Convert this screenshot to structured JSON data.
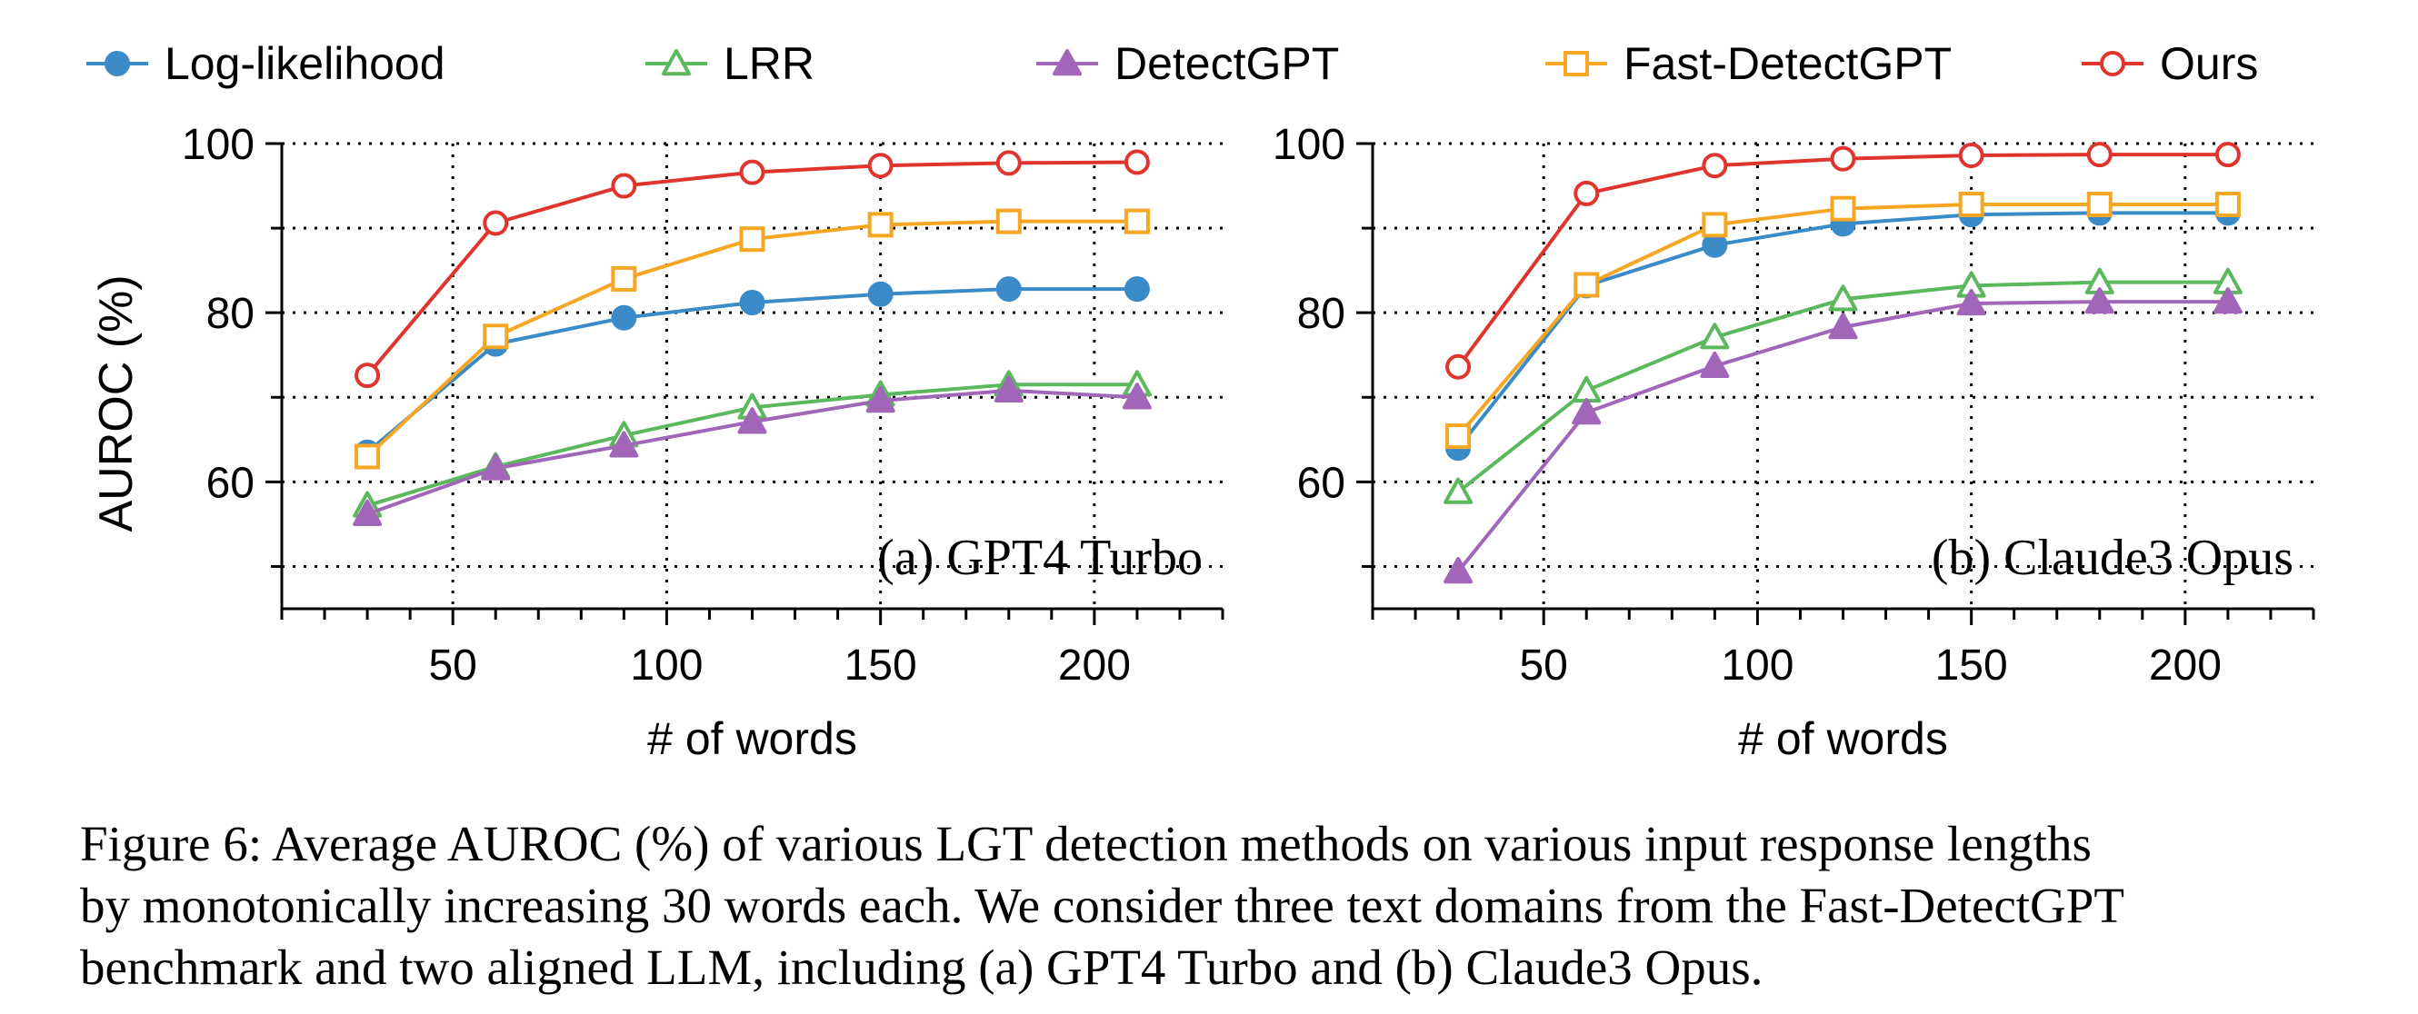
{
  "legend": [
    {
      "name": "Log-likelihood",
      "color": "#3b8bc9",
      "marker": "circle-filled"
    },
    {
      "name": "LRR",
      "color": "#5cb85c",
      "marker": "triangle-open"
    },
    {
      "name": "DetectGPT",
      "color": "#a266b8",
      "marker": "triangle-filled"
    },
    {
      "name": "Fast-DetectGPT",
      "color": "#f5a623",
      "marker": "square-open"
    },
    {
      "name": "Ours",
      "color": "#e0342e",
      "marker": "circle-open"
    }
  ],
  "chart_data": [
    {
      "type": "line",
      "panel_label": "(a) GPT4 Turbo",
      "xlabel": "# of words",
      "ylabel": "AUROC (%)",
      "xlim": [
        10,
        230
      ],
      "ylim": [
        45,
        100
      ],
      "xticks": [
        50,
        100,
        150,
        200
      ],
      "yticks": [
        60,
        80,
        100
      ],
      "grid": true,
      "x": [
        30,
        60,
        90,
        120,
        150,
        180,
        210
      ],
      "series": [
        {
          "name": "Log-likelihood",
          "values": [
            63.5,
            76.3,
            79.4,
            81.2,
            82.2,
            82.8,
            82.8
          ]
        },
        {
          "name": "LRR",
          "values": [
            57.2,
            61.8,
            65.5,
            68.8,
            70.3,
            71.5,
            71.5
          ]
        },
        {
          "name": "DetectGPT",
          "values": [
            56.2,
            61.6,
            64.3,
            67.1,
            69.6,
            70.8,
            70.0
          ]
        },
        {
          "name": "Fast-DetectGPT",
          "values": [
            63.0,
            77.2,
            84.0,
            88.7,
            90.4,
            90.8,
            90.8
          ]
        },
        {
          "name": "Ours",
          "values": [
            72.6,
            90.6,
            95.0,
            96.6,
            97.4,
            97.7,
            97.8
          ]
        }
      ]
    },
    {
      "type": "line",
      "panel_label": "(b) Claude3 Opus",
      "xlabel": "# of words",
      "ylabel": "",
      "xlim": [
        10,
        230
      ],
      "ylim": [
        45,
        100
      ],
      "xticks": [
        50,
        100,
        150,
        200
      ],
      "yticks": [
        60,
        80,
        100
      ],
      "grid": true,
      "x": [
        30,
        60,
        90,
        120,
        150,
        180,
        210
      ],
      "series": [
        {
          "name": "Log-likelihood",
          "values": [
            64.0,
            83.2,
            88.0,
            90.5,
            91.6,
            91.8,
            91.8
          ]
        },
        {
          "name": "LRR",
          "values": [
            58.8,
            70.8,
            77.1,
            81.6,
            83.2,
            83.6,
            83.6
          ]
        },
        {
          "name": "DetectGPT",
          "values": [
            49.4,
            68.2,
            73.7,
            78.3,
            81.1,
            81.3,
            81.3
          ]
        },
        {
          "name": "Fast-DetectGPT",
          "values": [
            65.4,
            83.3,
            90.4,
            92.3,
            92.8,
            92.8,
            92.8
          ]
        },
        {
          "name": "Ours",
          "values": [
            73.6,
            94.1,
            97.4,
            98.2,
            98.6,
            98.7,
            98.7
          ]
        }
      ]
    }
  ],
  "caption": [
    "Figure 6: Average AUROC (%) of various LGT detection methods on various input response lengths",
    "by monotonically increasing 30 words each. We consider three text domains from the Fast-DetectGPT",
    "benchmark and two aligned LLM, including (a) GPT4 Turbo and (b) Claude3 Opus."
  ]
}
